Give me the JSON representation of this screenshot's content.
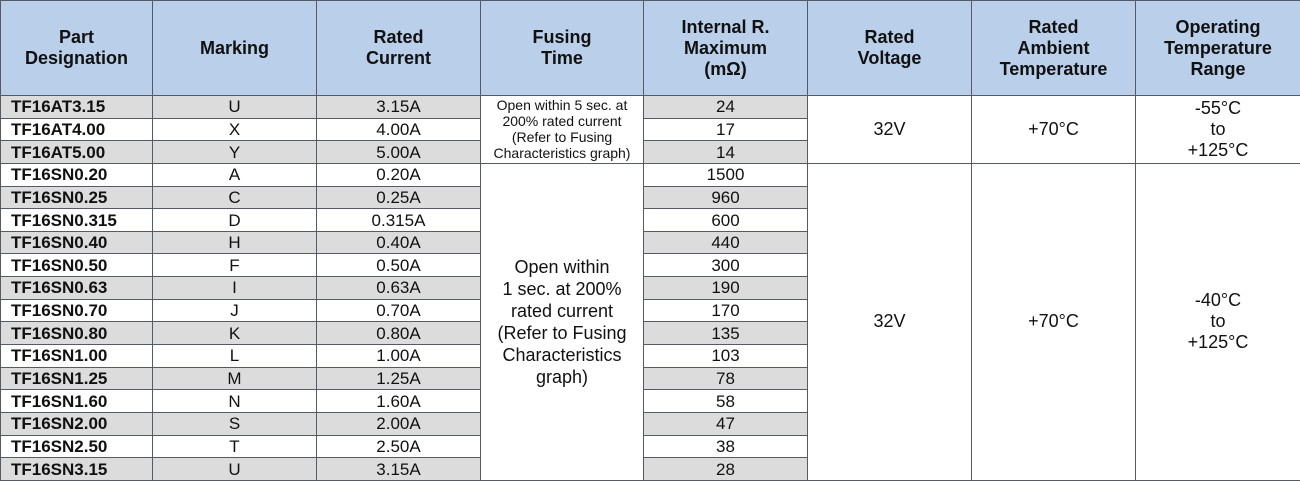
{
  "headers": {
    "part_designation": [
      "Part",
      "Designation"
    ],
    "marking": "Marking",
    "rated_current": [
      "Rated",
      "Current"
    ],
    "fusing_time": [
      "Fusing",
      "Time"
    ],
    "internal_r": [
      "Internal R.",
      "Maximum",
      "(mΩ)"
    ],
    "rated_voltage": [
      "Rated",
      "Voltage"
    ],
    "rated_ambient_temp": [
      "Rated",
      "Ambient",
      "Temperature"
    ],
    "operating_temp_range": [
      "Operating",
      "Temperature",
      "Range"
    ]
  },
  "group1": {
    "fusing_time": [
      "Open within 5 sec. at",
      "200% rated current",
      "(Refer to Fusing",
      "Characteristics graph)"
    ],
    "rated_voltage": "32V",
    "rated_ambient_temp": "+70°C",
    "operating_temp_range": [
      "-55°C",
      "to",
      "+125°C"
    ],
    "rows": [
      {
        "part": "TF16AT3.15",
        "marking": "U",
        "current": "3.15A",
        "resistance": "24"
      },
      {
        "part": "TF16AT4.00",
        "marking": "X",
        "current": "4.00A",
        "resistance": "17"
      },
      {
        "part": "TF16AT5.00",
        "marking": "Y",
        "current": "5.00A",
        "resistance": "14"
      }
    ]
  },
  "group2": {
    "fusing_time": [
      "Open within",
      "1 sec. at 200%",
      "rated current",
      "(Refer to Fusing",
      "Characteristics",
      "graph)"
    ],
    "rated_voltage": "32V",
    "rated_ambient_temp": "+70°C",
    "operating_temp_range": [
      "-40°C",
      "to",
      "+125°C"
    ],
    "rows": [
      {
        "part": "TF16SN0.20",
        "marking": "A",
        "current": "0.20A",
        "resistance": "1500"
      },
      {
        "part": "TF16SN0.25",
        "marking": "C",
        "current": "0.25A",
        "resistance": "960"
      },
      {
        "part": "TF16SN0.315",
        "marking": "D",
        "current": "0.315A",
        "resistance": "600"
      },
      {
        "part": "TF16SN0.40",
        "marking": "H",
        "current": "0.40A",
        "resistance": "440"
      },
      {
        "part": "TF16SN0.50",
        "marking": "F",
        "current": "0.50A",
        "resistance": "300"
      },
      {
        "part": "TF16SN0.63",
        "marking": "I",
        "current": "0.63A",
        "resistance": "190"
      },
      {
        "part": "TF16SN0.70",
        "marking": "J",
        "current": "0.70A",
        "resistance": "170"
      },
      {
        "part": "TF16SN0.80",
        "marking": "K",
        "current": "0.80A",
        "resistance": "135"
      },
      {
        "part": "TF16SN1.00",
        "marking": "L",
        "current": "1.00A",
        "resistance": "103"
      },
      {
        "part": "TF16SN1.25",
        "marking": "M",
        "current": "1.25A",
        "resistance": "78"
      },
      {
        "part": "TF16SN1.60",
        "marking": "N",
        "current": "1.60A",
        "resistance": "58"
      },
      {
        "part": "TF16SN2.00",
        "marking": "S",
        "current": "2.00A",
        "resistance": "47"
      },
      {
        "part": "TF16SN2.50",
        "marking": "T",
        "current": "2.50A",
        "resistance": "38"
      },
      {
        "part": "TF16SN3.15",
        "marking": "U",
        "current": "3.15A",
        "resistance": "28"
      }
    ]
  }
}
